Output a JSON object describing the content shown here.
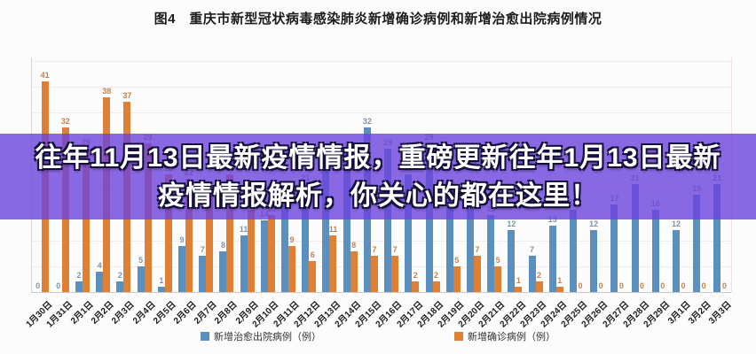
{
  "page": {
    "background": "#fdfcfc"
  },
  "header": {
    "title": "图4　重庆市新型冠状病毒感染肺炎新增确诊病例和新增治愈出院病例情况"
  },
  "overlay": {
    "line1": "往年11月13日最新疫情情报，重磅更新往年1月13日最新",
    "line2": "疫情情报解析，你关心的都在这里！",
    "background": "#6b42dd",
    "opacity": 0.8,
    "text_color": "#ffffff"
  },
  "chart_data": {
    "type": "bar",
    "title": "图4　重庆市新型冠状病毒感染肺炎新增确诊病例和新增治愈出院病例情况",
    "categories": [
      "1月30日",
      "1月31日",
      "2月1日",
      "2月2日",
      "2月3日",
      "2月4日",
      "2月5日",
      "2月6日",
      "2月7日",
      "2月8日",
      "2月9日",
      "2月10日",
      "2月11日",
      "2月12日",
      "2月13日",
      "2月14日",
      "2月15日",
      "2月16日",
      "2月17日",
      "2月18日",
      "2月19日",
      "2月20日",
      "2月21日",
      "2月22日",
      "2月23日",
      "2月24日",
      "2月25日",
      "2月26日",
      "2月27日",
      "2月28日",
      "2月29日",
      "3月1日",
      "3月2日",
      "3月3日"
    ],
    "series": [
      {
        "name": "新增治愈出院病例（例）",
        "color": "#5b8fbe",
        "label_color": "#8094aa",
        "values": [
          0,
          0,
          2,
          4,
          2,
          5,
          1,
          9,
          7,
          8,
          11,
          14,
          17,
          21,
          24,
          26,
          32,
          28,
          23,
          29,
          20,
          18,
          15,
          12,
          7,
          13,
          16,
          12,
          17,
          21,
          16,
          12,
          19,
          21
        ]
      },
      {
        "name": "新增确诊病例（例）",
        "color": "#e08034",
        "label_color": "#c2824e",
        "values": [
          41,
          32,
          28,
          38,
          37,
          29,
          23,
          22,
          19,
          23,
          16,
          15,
          9,
          6,
          11,
          8,
          7,
          7,
          2,
          2,
          5,
          7,
          5,
          1,
          2,
          1,
          0,
          0,
          0,
          0,
          0,
          0,
          0,
          0
        ]
      }
    ],
    "ylim": [
      0,
      45
    ],
    "grid_step": 5,
    "grid": true,
    "legend_position": "bottom",
    "xlabel": "",
    "ylabel": ""
  }
}
